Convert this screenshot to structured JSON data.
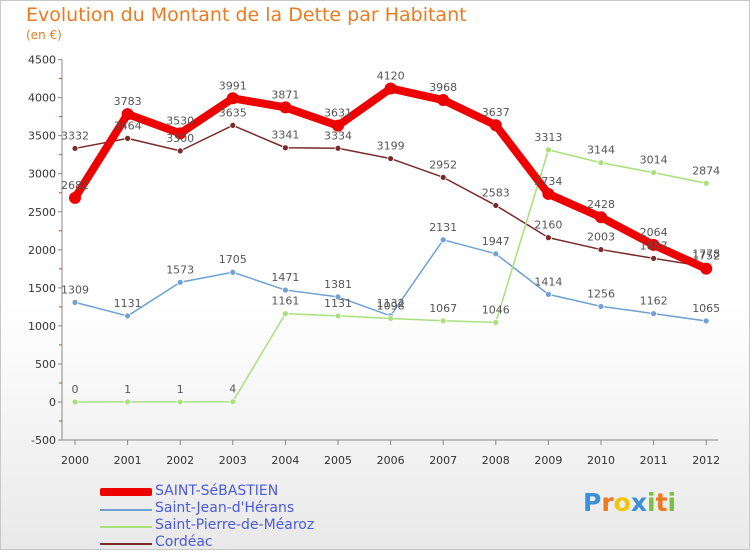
{
  "header": {
    "title": "Evolution du Montant de la Dette par Habitant",
    "subtitle": "(en €)"
  },
  "logo": {
    "letters": [
      "P",
      "r",
      "o",
      "x",
      "i",
      "t",
      "i"
    ],
    "colors": [
      "#3b8fd8",
      "#ee7a20",
      "#f5c400",
      "#3b8fd8",
      "#7ac143",
      "#ee7a20",
      "#7ac143"
    ]
  },
  "chart_data": {
    "type": "line",
    "title": "Evolution du Montant de la Dette par Habitant",
    "subtitle": "(en €)",
    "xlabel": "",
    "ylabel": "",
    "x": [
      "2000",
      "2001",
      "2002",
      "2003",
      "2004",
      "2005",
      "2006",
      "2007",
      "2008",
      "2009",
      "2010",
      "2011",
      "2012"
    ],
    "ylim": [
      -500,
      4500
    ],
    "yticks": [
      -500,
      0,
      500,
      1000,
      1500,
      2000,
      2500,
      3000,
      3500,
      4000,
      4500
    ],
    "ytick_labels": [
      "-500",
      "0",
      "500",
      "1000",
      "1500",
      "2000",
      "2500",
      "3000",
      "3500",
      "4000",
      "4500"
    ],
    "grid": false,
    "legend_position": "bottom-left",
    "series": [
      {
        "name": "SAINT-SéBASTIEN",
        "color": "#ee0000",
        "values": [
          2682,
          3783,
          3530,
          3991,
          3871,
          3631,
          4120,
          3968,
          3637,
          2734,
          2428,
          2064,
          1752
        ]
      },
      {
        "name": "Saint-Jean-d'Hérans",
        "color": "#6fa0d4",
        "values": [
          1309,
          1131,
          1573,
          1705,
          1471,
          1381,
          1132,
          2131,
          1947,
          1414,
          1256,
          1162,
          1065
        ]
      },
      {
        "name": "Saint-Pierre-de-Méaroz",
        "color": "#a8e07c",
        "values": [
          0,
          1,
          1,
          4,
          1161,
          1131,
          1098,
          1067,
          1046,
          3313,
          3144,
          3014,
          2874
        ]
      },
      {
        "name": "Cordéac",
        "color": "#7a2a2a",
        "values": [
          3332,
          3464,
          3300,
          3635,
          3341,
          3334,
          3199,
          2952,
          2583,
          2160,
          2003,
          1887,
          1778
        ]
      }
    ]
  }
}
